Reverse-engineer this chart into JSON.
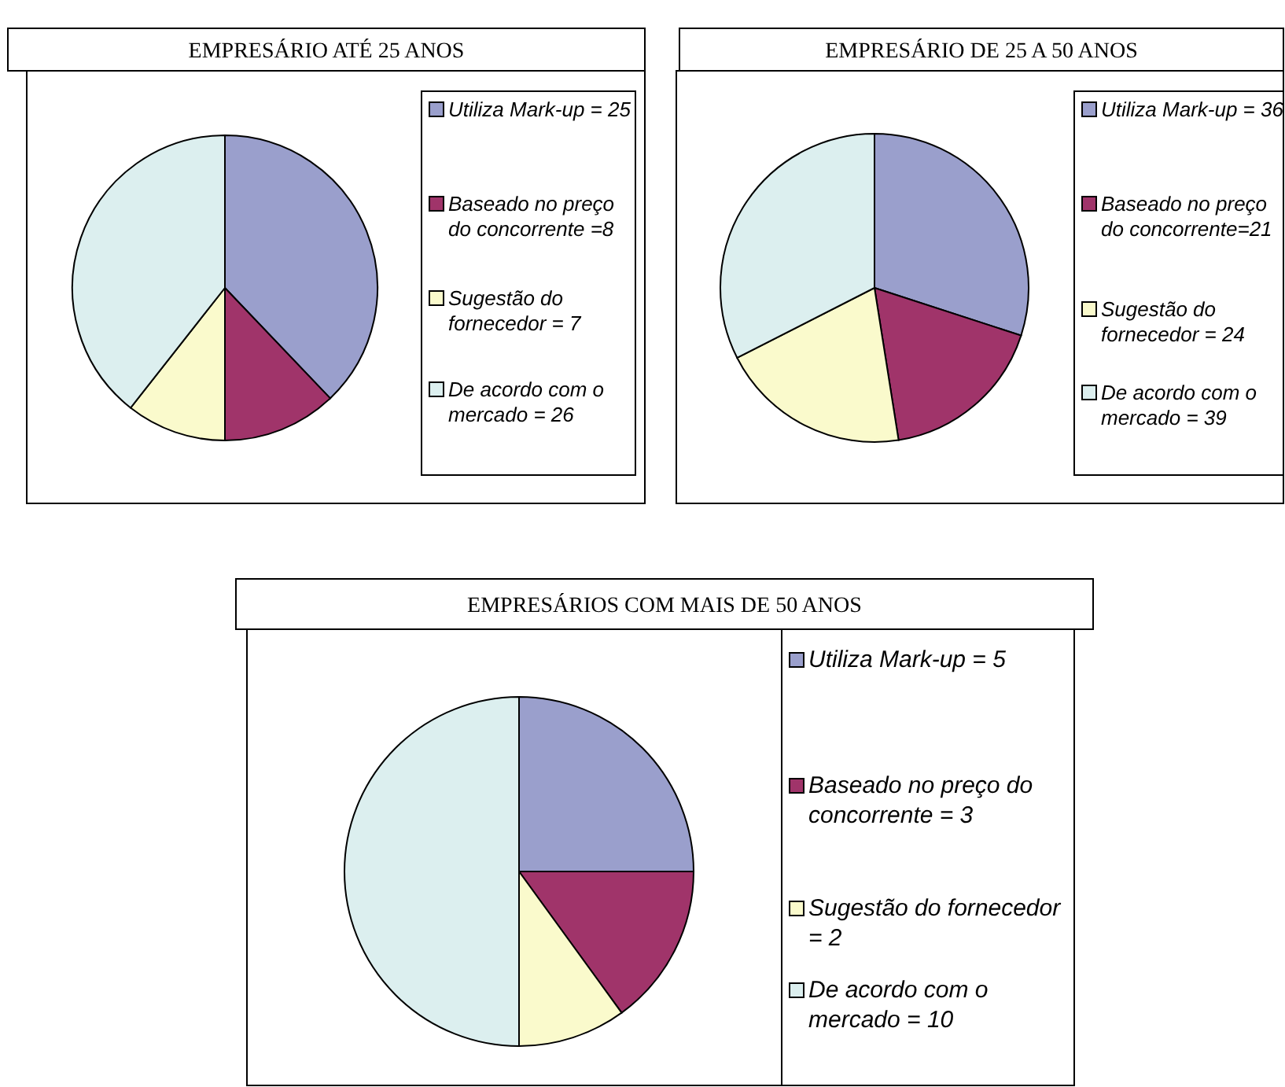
{
  "chart_data": [
    {
      "type": "pie",
      "title": "EMPRESÁRIO ATÉ 25 ANOS",
      "categories": [
        "Utiliza Mark-up = 25",
        "Baseado no preço do concorrente =8",
        "Sugestão do fornecedor = 7",
        "De acordo com o mercado = 26"
      ],
      "values": [
        25,
        8,
        7,
        26
      ],
      "colors": [
        "#9a9fcc",
        "#a0346a",
        "#fafacc",
        "#dcefef"
      ],
      "legend": "right"
    },
    {
      "type": "pie",
      "title": "EMPRESÁRIO DE 25 A 50 ANOS",
      "categories": [
        "Utiliza Mark-up = 36",
        "Baseado no preço do concorrente=21",
        "Sugestão do fornecedor = 24",
        "De acordo com o mercado = 39"
      ],
      "values": [
        36,
        21,
        24,
        39
      ],
      "colors": [
        "#9a9fcc",
        "#a0346a",
        "#fafacc",
        "#dcefef"
      ],
      "legend": "right"
    },
    {
      "type": "pie",
      "title": "EMPRESÁRIOS COM MAIS DE 50 ANOS",
      "categories": [
        "Utiliza Mark-up = 5",
        "Baseado no preço do concorrente = 3",
        "Sugestão do fornecedor = 2",
        "De acordo com o mercado = 10"
      ],
      "values": [
        5,
        3,
        2,
        10
      ],
      "colors": [
        "#9a9fcc",
        "#a0346a",
        "#fafacc",
        "#dcefef"
      ],
      "legend": "right"
    }
  ]
}
